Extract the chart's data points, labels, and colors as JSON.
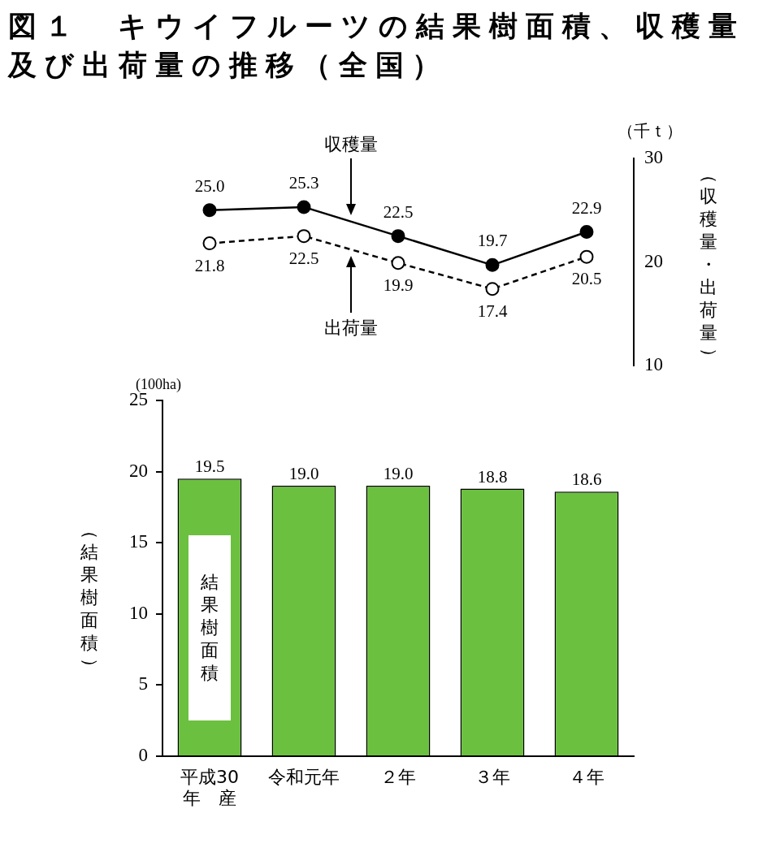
{
  "chart_data": [
    {
      "type": "line",
      "title": "図１　キウイフルーツの結果樹面積、収穫量及び出荷量の推移（全国）",
      "categories": [
        "平成30年　産",
        "令和元年",
        "２年",
        "３年",
        "４年"
      ],
      "series": [
        {
          "name": "収穫量",
          "color": "#000000",
          "values": [
            25.0,
            25.3,
            22.5,
            19.7,
            22.9
          ],
          "value_labels": [
            "25.0",
            "25.3",
            "22.5",
            "19.7",
            "22.9"
          ],
          "axis": "y2",
          "line_style": "solid"
        },
        {
          "name": "出荷量",
          "color": "#000000",
          "values": [
            21.8,
            22.5,
            19.9,
            17.4,
            20.5
          ],
          "value_labels": [
            "21.8",
            "22.5",
            "19.9",
            "17.4",
            "20.5"
          ],
          "axis": "y2",
          "line_style": "dashed"
        }
      ],
      "y2lim": [
        10,
        30
      ],
      "y2ticks": [
        10,
        20,
        30
      ],
      "y2label": "（収穫量・出荷量）",
      "annotations": [
        "（千ｔ）"
      ],
      "marker": "circle",
      "tick_labels": "y",
      "grid": false,
      "legend": false
    },
    {
      "type": "bar",
      "categories": [
        "平成30年　産",
        "令和元年",
        "２年",
        "３年",
        "４年"
      ],
      "series": [
        {
          "name": "結果樹面積",
          "color": "#6cc040",
          "values": [
            19.5,
            19.0,
            19.0,
            18.8,
            18.6
          ],
          "value_labels": [
            "19.5",
            "19.0",
            "19.0",
            "18.8",
            "18.6"
          ]
        }
      ],
      "ylim": [
        0,
        25
      ],
      "yticks": [
        0,
        5,
        10,
        15,
        20,
        25
      ],
      "ylabel": "（結果樹面積）",
      "annotations": [
        "(100ha)"
      ],
      "grid": false,
      "legend": false
    }
  ]
}
